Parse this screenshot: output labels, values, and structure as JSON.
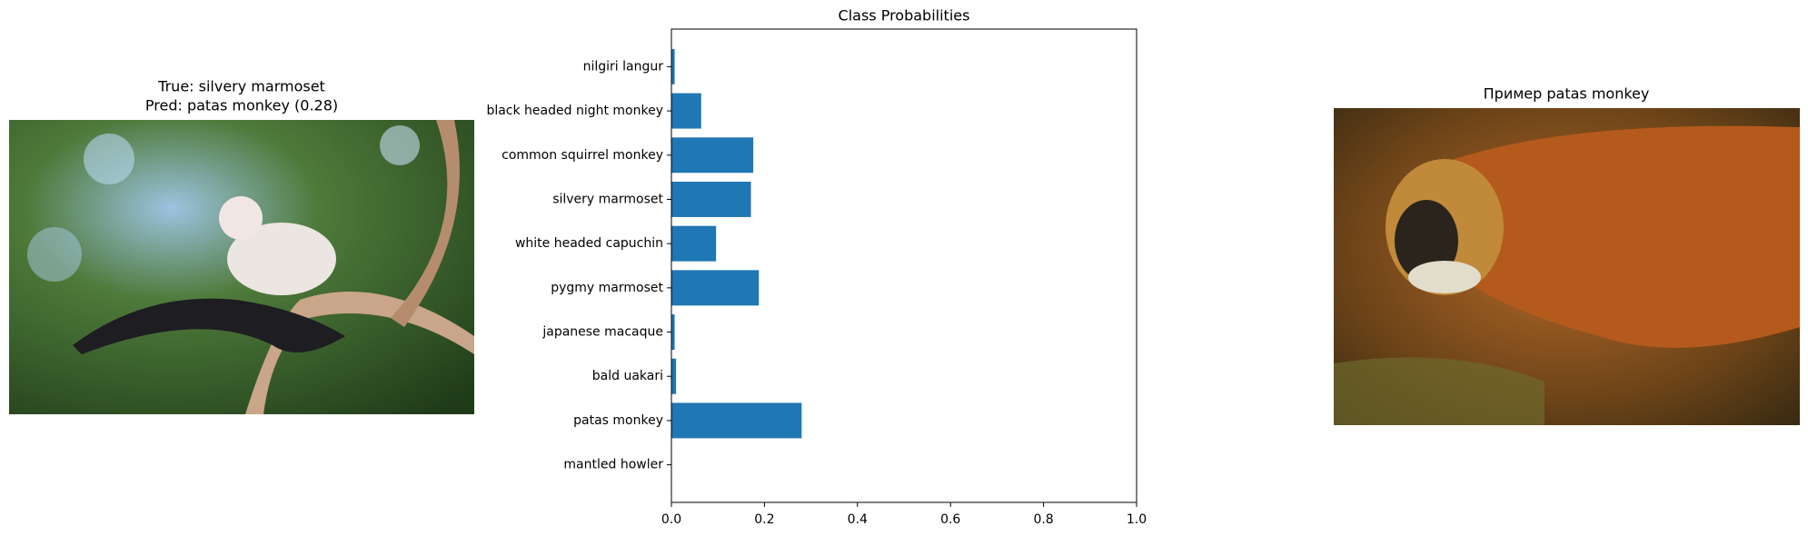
{
  "left_panel": {
    "title_lines": [
      "True: silvery marmoset",
      "Pred: patas monkey (0.28)"
    ]
  },
  "chart_data": {
    "type": "barh",
    "title": "Class Probabilities",
    "categories": [
      "nilgiri langur",
      "black headed night monkey",
      "common squirrel monkey",
      "silvery marmoset",
      "white headed capuchin",
      "pygmy marmoset",
      "japanese macaque",
      "bald uakari",
      "patas monkey",
      "mantled howler"
    ],
    "values": [
      0.007,
      0.064,
      0.176,
      0.171,
      0.096,
      0.188,
      0.007,
      0.01,
      0.28,
      0.001
    ],
    "color": "#1f77b4",
    "xlim": [
      0,
      1
    ],
    "xticks": [
      {
        "value": 0,
        "label": "0.0"
      },
      {
        "value": 0.2,
        "label": "0.2"
      },
      {
        "value": 0.4,
        "label": "0.4"
      },
      {
        "value": 0.6,
        "label": "0.6"
      },
      {
        "value": 0.8,
        "label": "0.8"
      },
      {
        "value": 1,
        "label": "1.0"
      }
    ],
    "grid": false
  },
  "right_panel": {
    "title": "Пример patas monkey"
  }
}
